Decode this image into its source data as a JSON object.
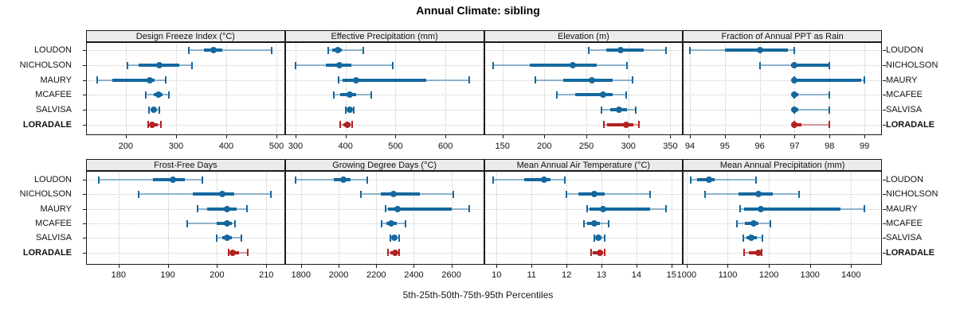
{
  "title": "Annual Climate: sibling",
  "footer": "5th-25th-50th-75th-95th Percentiles",
  "stations": [
    "LOUDON",
    "NICHOLSON",
    "MAURY",
    "MCAFEE",
    "SALVISA",
    "LORADALE"
  ],
  "highlight_station": "LORADALE",
  "percentile_levels": [
    5,
    25,
    50,
    75,
    95
  ],
  "colors": {
    "series": "#15689E",
    "highlight": "#B22222",
    "grid": "#C8C8C8",
    "border": "#1A1A1A",
    "header_bg": "#EBEBEB"
  },
  "chart_data": [
    {
      "type": "percentile-dotplot",
      "title": "Design Freeze Index (°C)",
      "row": 0,
      "col": 0,
      "xlim": [
        121,
        517
      ],
      "ticks": [
        200,
        300,
        400,
        500
      ],
      "series": [
        {
          "name": "LOUDON",
          "percentiles": [
            325,
            355,
            375,
            392,
            490
          ]
        },
        {
          "name": "NICHOLSON",
          "percentiles": [
            203,
            226,
            267,
            307,
            332
          ]
        },
        {
          "name": "MAURY",
          "percentiles": [
            143,
            174,
            248,
            258,
            280
          ]
        },
        {
          "name": "MCAFEE",
          "percentiles": [
            240,
            255,
            265,
            273,
            286
          ]
        },
        {
          "name": "SALVISA",
          "percentiles": [
            246,
            252,
            256,
            261,
            267
          ]
        },
        {
          "name": "LORADALE",
          "percentiles": [
            245,
            248,
            253,
            264,
            270
          ]
        }
      ]
    },
    {
      "type": "percentile-dotplot",
      "title": "Effective Precipitation (mm)",
      "row": 0,
      "col": 1,
      "xlim": [
        279,
        677
      ],
      "ticks": [
        300,
        400,
        500,
        600
      ],
      "series": [
        {
          "name": "LOUDON",
          "percentiles": [
            366,
            374,
            384,
            392,
            435
          ]
        },
        {
          "name": "NICHOLSON",
          "percentiles": [
            300,
            360,
            388,
            411,
            494
          ]
        },
        {
          "name": "MAURY",
          "percentiles": [
            386,
            394,
            421,
            562,
            647
          ]
        },
        {
          "name": "MCAFEE",
          "percentiles": [
            377,
            390,
            408,
            422,
            451
          ]
        },
        {
          "name": "SALVISA",
          "percentiles": [
            400,
            404,
            408,
            412,
            416
          ]
        },
        {
          "name": "LORADALE",
          "percentiles": [
            389,
            396,
            403,
            410,
            413
          ]
        }
      ]
    },
    {
      "type": "percentile-dotplot",
      "title": "Elevation (m)",
      "row": 0,
      "col": 2,
      "xlim": [
        128,
        365
      ],
      "ticks": [
        150,
        200,
        250,
        300,
        350
      ],
      "series": [
        {
          "name": "LOUDON",
          "percentiles": [
            253,
            274,
            291,
            318,
            345
          ]
        },
        {
          "name": "NICHOLSON",
          "percentiles": [
            139,
            183,
            234,
            262,
            298
          ]
        },
        {
          "name": "MAURY",
          "percentiles": [
            189,
            222,
            257,
            281,
            305
          ]
        },
        {
          "name": "MCAFEE",
          "percentiles": [
            215,
            237,
            270,
            281,
            297
          ]
        },
        {
          "name": "SALVISA",
          "percentiles": [
            268,
            278,
            289,
            298,
            309
          ]
        },
        {
          "name": "LORADALE",
          "percentiles": [
            271,
            275,
            297,
            306,
            313
          ]
        }
      ]
    },
    {
      "type": "percentile-dotplot",
      "title": "Fraction of Annual PPT as Rain",
      "row": 0,
      "col": 3,
      "xlim": [
        93.8,
        99.5
      ],
      "ticks": [
        94,
        95,
        96,
        97,
        98,
        99
      ],
      "series": [
        {
          "name": "LOUDON",
          "percentiles": [
            94,
            95,
            96,
            96.8,
            97
          ]
        },
        {
          "name": "NICHOLSON",
          "percentiles": [
            96,
            96.9,
            97,
            98,
            98
          ]
        },
        {
          "name": "MAURY",
          "percentiles": [
            97,
            97,
            97,
            98.9,
            99
          ]
        },
        {
          "name": "MCAFEE",
          "percentiles": [
            97,
            97,
            97,
            97.1,
            98
          ]
        },
        {
          "name": "SALVISA",
          "percentiles": [
            97,
            97,
            97,
            97.1,
            98
          ]
        },
        {
          "name": "LORADALE",
          "percentiles": [
            97,
            97,
            97,
            97.2,
            98
          ]
        }
      ]
    },
    {
      "type": "percentile-dotplot",
      "title": "Frost-Free Days",
      "row": 1,
      "col": 0,
      "xlim": [
        173.4,
        213.8
      ],
      "ticks": [
        180,
        190,
        200,
        210
      ],
      "series": [
        {
          "name": "LOUDON",
          "percentiles": [
            176,
            187,
            191,
            193.5,
            197
          ]
        },
        {
          "name": "NICHOLSON",
          "percentiles": [
            184,
            195,
            201,
            203.5,
            211
          ]
        },
        {
          "name": "MAURY",
          "percentiles": [
            196,
            198,
            202,
            204,
            206
          ]
        },
        {
          "name": "MCAFEE",
          "percentiles": [
            194,
            200,
            202,
            203,
            203.7
          ]
        },
        {
          "name": "SALVISA",
          "percentiles": [
            200,
            201,
            202,
            203,
            205
          ]
        },
        {
          "name": "LORADALE",
          "percentiles": [
            202.3,
            202.8,
            203.2,
            204.5,
            206.3
          ]
        }
      ]
    },
    {
      "type": "percentile-dotplot",
      "title": "Growing Degree Days (°C)",
      "row": 1,
      "col": 1,
      "xlim": [
        1715,
        2773
      ],
      "ticks": [
        1800,
        2000,
        2200,
        2400,
        2600
      ],
      "series": [
        {
          "name": "LOUDON",
          "percentiles": [
            1772,
            1975,
            2025,
            2062,
            2151
          ]
        },
        {
          "name": "NICHOLSON",
          "percentiles": [
            2118,
            2225,
            2291,
            2432,
            2608
          ]
        },
        {
          "name": "MAURY",
          "percentiles": [
            2248,
            2263,
            2314,
            2600,
            2694
          ]
        },
        {
          "name": "MCAFEE",
          "percentiles": [
            2228,
            2256,
            2281,
            2308,
            2354
          ]
        },
        {
          "name": "SALVISA",
          "percentiles": [
            2276,
            2282,
            2295,
            2311,
            2320
          ]
        },
        {
          "name": "LORADALE",
          "percentiles": [
            2263,
            2274,
            2301,
            2314,
            2320
          ]
        }
      ]
    },
    {
      "type": "percentile-dotplot",
      "title": "Mean Annual Air Temperature (°C)",
      "row": 1,
      "col": 2,
      "xlim": [
        9.64,
        15.33
      ],
      "ticks": [
        10,
        11,
        12,
        13,
        14,
        15
      ],
      "series": [
        {
          "name": "LOUDON",
          "percentiles": [
            9.9,
            10.8,
            11.35,
            11.55,
            11.95
          ]
        },
        {
          "name": "NICHOLSON",
          "percentiles": [
            12.0,
            12.35,
            12.8,
            13.1,
            14.4
          ]
        },
        {
          "name": "MAURY",
          "percentiles": [
            12.6,
            12.65,
            13.05,
            14.4,
            14.85
          ]
        },
        {
          "name": "MCAFEE",
          "percentiles": [
            12.5,
            12.6,
            12.8,
            12.95,
            13.2
          ]
        },
        {
          "name": "SALVISA",
          "percentiles": [
            12.8,
            12.85,
            12.9,
            13.0,
            13.1
          ]
        },
        {
          "name": "LORADALE",
          "percentiles": [
            12.7,
            12.75,
            12.95,
            13.05,
            13.1
          ]
        }
      ]
    },
    {
      "type": "percentile-dotplot",
      "title": "Mean Annual Precipitation (mm)",
      "row": 1,
      "col": 3,
      "xlim": [
        991,
        1475
      ],
      "ticks": [
        1000,
        1100,
        1200,
        1300,
        1400
      ],
      "series": [
        {
          "name": "LOUDON",
          "percentiles": [
            1010,
            1026,
            1055,
            1069,
            1169
          ]
        },
        {
          "name": "NICHOLSON",
          "percentiles": [
            1045,
            1126,
            1174,
            1210,
            1274
          ]
        },
        {
          "name": "MAURY",
          "percentiles": [
            1131,
            1139,
            1181,
            1374,
            1432
          ]
        },
        {
          "name": "MCAFEE",
          "percentiles": [
            1123,
            1142,
            1163,
            1174,
            1203
          ]
        },
        {
          "name": "SALVISA",
          "percentiles": [
            1137,
            1145,
            1158,
            1171,
            1184
          ]
        },
        {
          "name": "LORADALE",
          "percentiles": [
            1139,
            1152,
            1174,
            1180,
            1183
          ]
        }
      ]
    }
  ]
}
